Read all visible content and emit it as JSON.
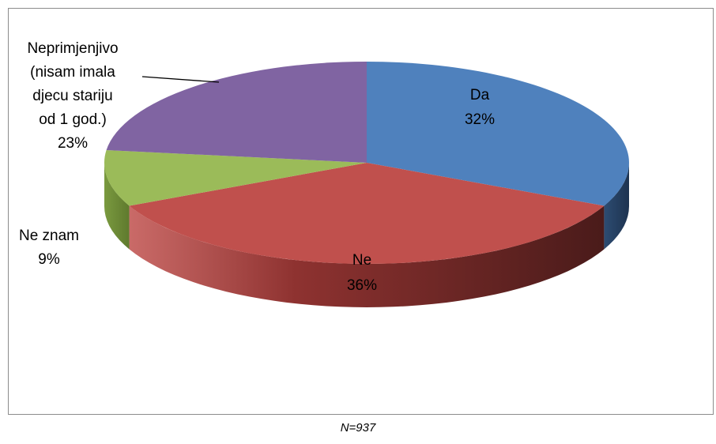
{
  "chart_data": {
    "type": "pie",
    "title": "",
    "categories": [
      "Da",
      "Ne",
      "Ne znam",
      "Neprimjenjivo (nisam imala djecu stariju od 1 god.)"
    ],
    "values": [
      32,
      36,
      9,
      23
    ],
    "unit": "%",
    "colors": [
      "#4f81bd",
      "#c0504d",
      "#9bbb59",
      "#8064a2"
    ],
    "legend": "none",
    "style": "3d",
    "labels": [
      {
        "lines": [
          "Da",
          "32%"
        ]
      },
      {
        "lines": [
          "Ne",
          "36%"
        ]
      },
      {
        "lines": [
          "Ne znam",
          "9%"
        ]
      },
      {
        "lines": [
          "Neprimjenjivo",
          "(nisam imala",
          "djecu stariju",
          "od 1 god.)",
          "23%"
        ]
      }
    ]
  },
  "footnote": "N=937"
}
